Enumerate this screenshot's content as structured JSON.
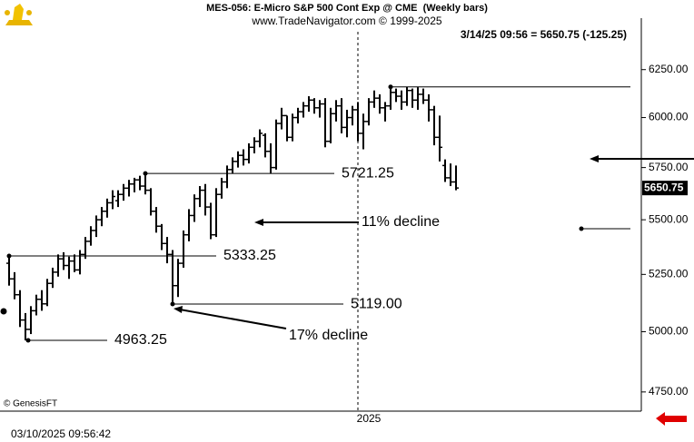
{
  "chart_data": {
    "type": "ohlc",
    "title": "MES-056: E-Micro S&P 500 Cont Exp @ CME  (Weekly bars)",
    "subtitle": "www.TradeNavigator.com © 1999-2025",
    "status": "3/14/25 09:56 = 5650.75 (-125.25)",
    "copyright": "© GenesisFT",
    "timestamp": "03/10/2025 09:56:42",
    "log_scale": true,
    "color": "#000000",
    "ylim": [
      4673,
      6530
    ],
    "yticks": [
      {
        "value": 4750,
        "label": "4750.00"
      },
      {
        "value": 5000,
        "label": "5000.00"
      },
      {
        "value": 5250,
        "label": "5250.00"
      },
      {
        "value": 5500,
        "label": "5500.00"
      },
      {
        "value": 5750,
        "label": "5750.00"
      },
      {
        "value": 6000,
        "label": "6000.00"
      },
      {
        "value": 6250,
        "label": "6250.00"
      }
    ],
    "categories": [
      null,
      null,
      null,
      null,
      null,
      null,
      null,
      null,
      null,
      null,
      null,
      null,
      null,
      null,
      null,
      null,
      null,
      null,
      null,
      null,
      null,
      null,
      null,
      null,
      null,
      null,
      null,
      null,
      null,
      null,
      null,
      null,
      null,
      null,
      null,
      null,
      null,
      null,
      null,
      null,
      null,
      null,
      null,
      null,
      null,
      null,
      null,
      null,
      null,
      null,
      null,
      null,
      null,
      null,
      null,
      null,
      null,
      null,
      null,
      null,
      null,
      null,
      null,
      null,
      "2025",
      null,
      null,
      null,
      null,
      null,
      null,
      null,
      null,
      null,
      null,
      null,
      null,
      null,
      null,
      null,
      null,
      null,
      null
    ],
    "open": [
      5300,
      5230,
      5160,
      5050,
      5010,
      5090,
      5140,
      5120,
      5210,
      5260,
      5320,
      5290,
      5310,
      5270,
      5340,
      5400,
      5450,
      5500,
      5540,
      5580,
      5590,
      5620,
      5650,
      5670,
      5690,
      5660,
      5640,
      5540,
      5470,
      5390,
      5340,
      5200,
      5300,
      5430,
      5520,
      5600,
      5640,
      5560,
      5430,
      5620,
      5680,
      5740,
      5780,
      5810,
      5790,
      5850,
      5880,
      5910,
      5830,
      5750,
      5970,
      6010,
      5900,
      6000,
      6030,
      6060,
      6090,
      6050,
      6070,
      5880,
      6020,
      6060,
      5950,
      6000,
      6040,
      5920,
      5980,
      6080,
      6100,
      6050,
      6060,
      6130,
      6110,
      6080,
      6140,
      6090,
      6120,
      6090,
      6040,
      5900,
      5760,
      5700,
      5680
    ],
    "high": [
      5333.25,
      5260,
      5180,
      5080,
      5110,
      5160,
      5180,
      5230,
      5280,
      5340,
      5350,
      5330,
      5340,
      5360,
      5420,
      5470,
      5520,
      5560,
      5600,
      5640,
      5640,
      5670,
      5690,
      5700,
      5710,
      5721.25,
      5650,
      5560,
      5480,
      5420,
      5360,
      5320,
      5450,
      5550,
      5620,
      5660,
      5670,
      5580,
      5650,
      5700,
      5760,
      5800,
      5830,
      5840,
      5870,
      5900,
      5940,
      5920,
      5870,
      5990,
      6050,
      6010,
      6020,
      6050,
      6080,
      6110,
      6100,
      6090,
      6100,
      6050,
      6090,
      6100,
      6040,
      6060,
      6080,
      6020,
      6100,
      6140,
      6120,
      6080,
      6159,
      6150,
      6140,
      6158,
      6150,
      6157,
      6150,
      6120,
      6060,
      6010,
      5790,
      5770,
      5760
    ],
    "low": [
      5200,
      5140,
      5020,
      4963.25,
      4990,
      5070,
      5090,
      5110,
      5190,
      5240,
      5270,
      5230,
      5260,
      5250,
      5320,
      5380,
      5420,
      5470,
      5510,
      5550,
      5560,
      5590,
      5610,
      5630,
      5640,
      5620,
      5520,
      5440,
      5360,
      5300,
      5119,
      5150,
      5280,
      5400,
      5490,
      5560,
      5520,
      5410,
      5420,
      5600,
      5650,
      5720,
      5750,
      5760,
      5770,
      5820,
      5850,
      5800,
      5721.25,
      5740,
      5940,
      5880,
      5880,
      5970,
      6000,
      6030,
      6020,
      6000,
      5850,
      5870,
      5980,
      5920,
      5900,
      5960,
      5880,
      5840,
      5960,
      6050,
      6020,
      5980,
      6040,
      6080,
      6040,
      6060,
      6050,
      6040,
      6070,
      5980,
      5860,
      5780,
      5680,
      5660,
      5640
    ],
    "close": [
      5230,
      5160,
      5050,
      5010,
      5090,
      5140,
      5120,
      5210,
      5260,
      5320,
      5290,
      5310,
      5270,
      5340,
      5400,
      5450,
      5500,
      5540,
      5580,
      5610,
      5620,
      5650,
      5670,
      5690,
      5660,
      5640,
      5540,
      5470,
      5390,
      5340,
      5200,
      5300,
      5430,
      5520,
      5600,
      5640,
      5560,
      5430,
      5620,
      5680,
      5740,
      5780,
      5810,
      5790,
      5850,
      5880,
      5920,
      5830,
      5750,
      5970,
      6010,
      5900,
      6000,
      6030,
      6060,
      6090,
      6050,
      6070,
      5880,
      6020,
      6060,
      5950,
      6000,
      6040,
      5920,
      5980,
      6080,
      6100,
      6050,
      6060,
      6130,
      6110,
      6080,
      6140,
      6090,
      6120,
      6090,
      6040,
      5900,
      5850,
      5700,
      5680,
      5650.75
    ],
    "levels": [
      6159,
      5721.25,
      5333.25,
      {
        "value": 5119,
        "label": "5119.00"
      },
      4963.25
    ],
    "annotations": [
      "11% decline",
      "17% decline"
    ]
  }
}
